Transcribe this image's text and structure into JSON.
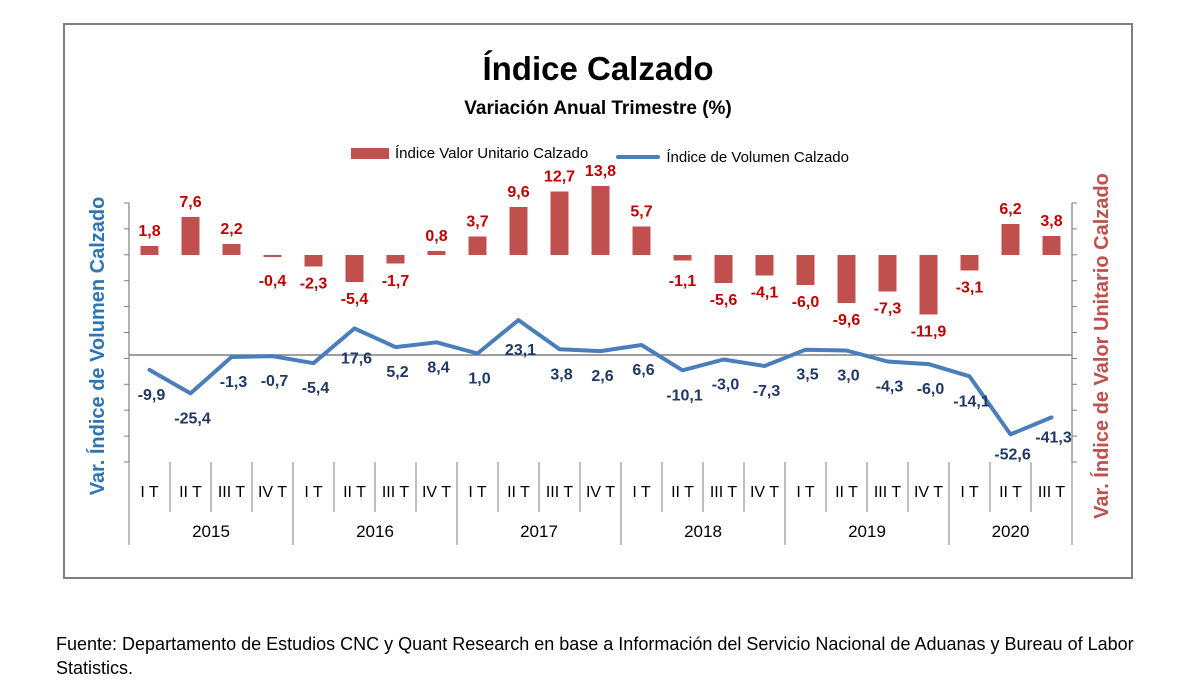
{
  "chart_data": {
    "type": "bar+line",
    "title": "Índice Calzado",
    "subtitle": "Variación Anual Trimestre  (%)",
    "ylabel_left": "Var. Índice de Volumen Calzado",
    "ylabel_right": "Var. Índice de Valor Unitario Calzado",
    "quarters": [
      "I T",
      "II T",
      "III T",
      "IV T",
      "I T",
      "II T",
      "III T",
      "IV T",
      "I T",
      "II T",
      "III T",
      "IV T",
      "I T",
      "II T",
      "III T",
      "IV T",
      "I T",
      "II T",
      "III T",
      "IV T",
      "I T",
      "II T",
      "III T"
    ],
    "years": [
      {
        "label": "2015",
        "span": 4
      },
      {
        "label": "2016",
        "span": 4
      },
      {
        "label": "2017",
        "span": 4
      },
      {
        "label": "2018",
        "span": 4
      },
      {
        "label": "2019",
        "span": 4
      },
      {
        "label": "2020",
        "span": 3
      }
    ],
    "series": [
      {
        "name": "Índice Valor Unitario Calzado",
        "kind": "bar",
        "color": "#c0504d",
        "labels": [
          "1,8",
          "7,6",
          "2,2",
          "-0,4",
          "-2,3",
          "-5,4",
          "-1,7",
          "0,8",
          "3,7",
          "9,6",
          "12,7",
          "13,8",
          "5,7",
          "-1,1",
          "-5,6",
          "-4,1",
          "-6,0",
          "-9,6",
          "-7,3",
          "-11,9",
          "-3,1",
          "6,2",
          "3,8"
        ],
        "values": [
          1.8,
          7.6,
          2.2,
          -0.4,
          -2.3,
          -5.4,
          -1.7,
          0.8,
          3.7,
          9.6,
          12.7,
          13.8,
          5.7,
          -1.1,
          -5.6,
          -4.1,
          -6.0,
          -9.6,
          -7.3,
          -11.9,
          -3.1,
          6.2,
          3.8
        ]
      },
      {
        "name": "Índice de Volumen Calzado",
        "kind": "line",
        "color": "#4a7ebb",
        "labels": [
          "-9,9",
          "-25,4",
          "-1,3",
          "-0,7",
          "-5,4",
          "17,6",
          "5,2",
          "8,4",
          "1,0",
          "23,1",
          "3,8",
          "2,6",
          "6,6",
          "-10,1",
          "-3,0",
          "-7,3",
          "3,5",
          "3,0",
          "-4,3",
          "-6,0",
          "-14,1",
          "-52,6",
          "-41,3"
        ],
        "values": [
          -9.9,
          -25.4,
          -1.3,
          -0.7,
          -5.4,
          17.6,
          5.2,
          8.4,
          1.0,
          23.1,
          3.8,
          2.6,
          6.6,
          -10.1,
          -3.0,
          -7.3,
          3.5,
          3.0,
          -4.3,
          -6.0,
          -14.1,
          -52.6,
          -41.3
        ]
      }
    ],
    "legend_position": "top-center"
  },
  "source": "Fuente: Departamento de Estudios CNC y Quant Research en base a Información del Servicio Nacional de Aduanas y Bureau of Labor Statistics."
}
